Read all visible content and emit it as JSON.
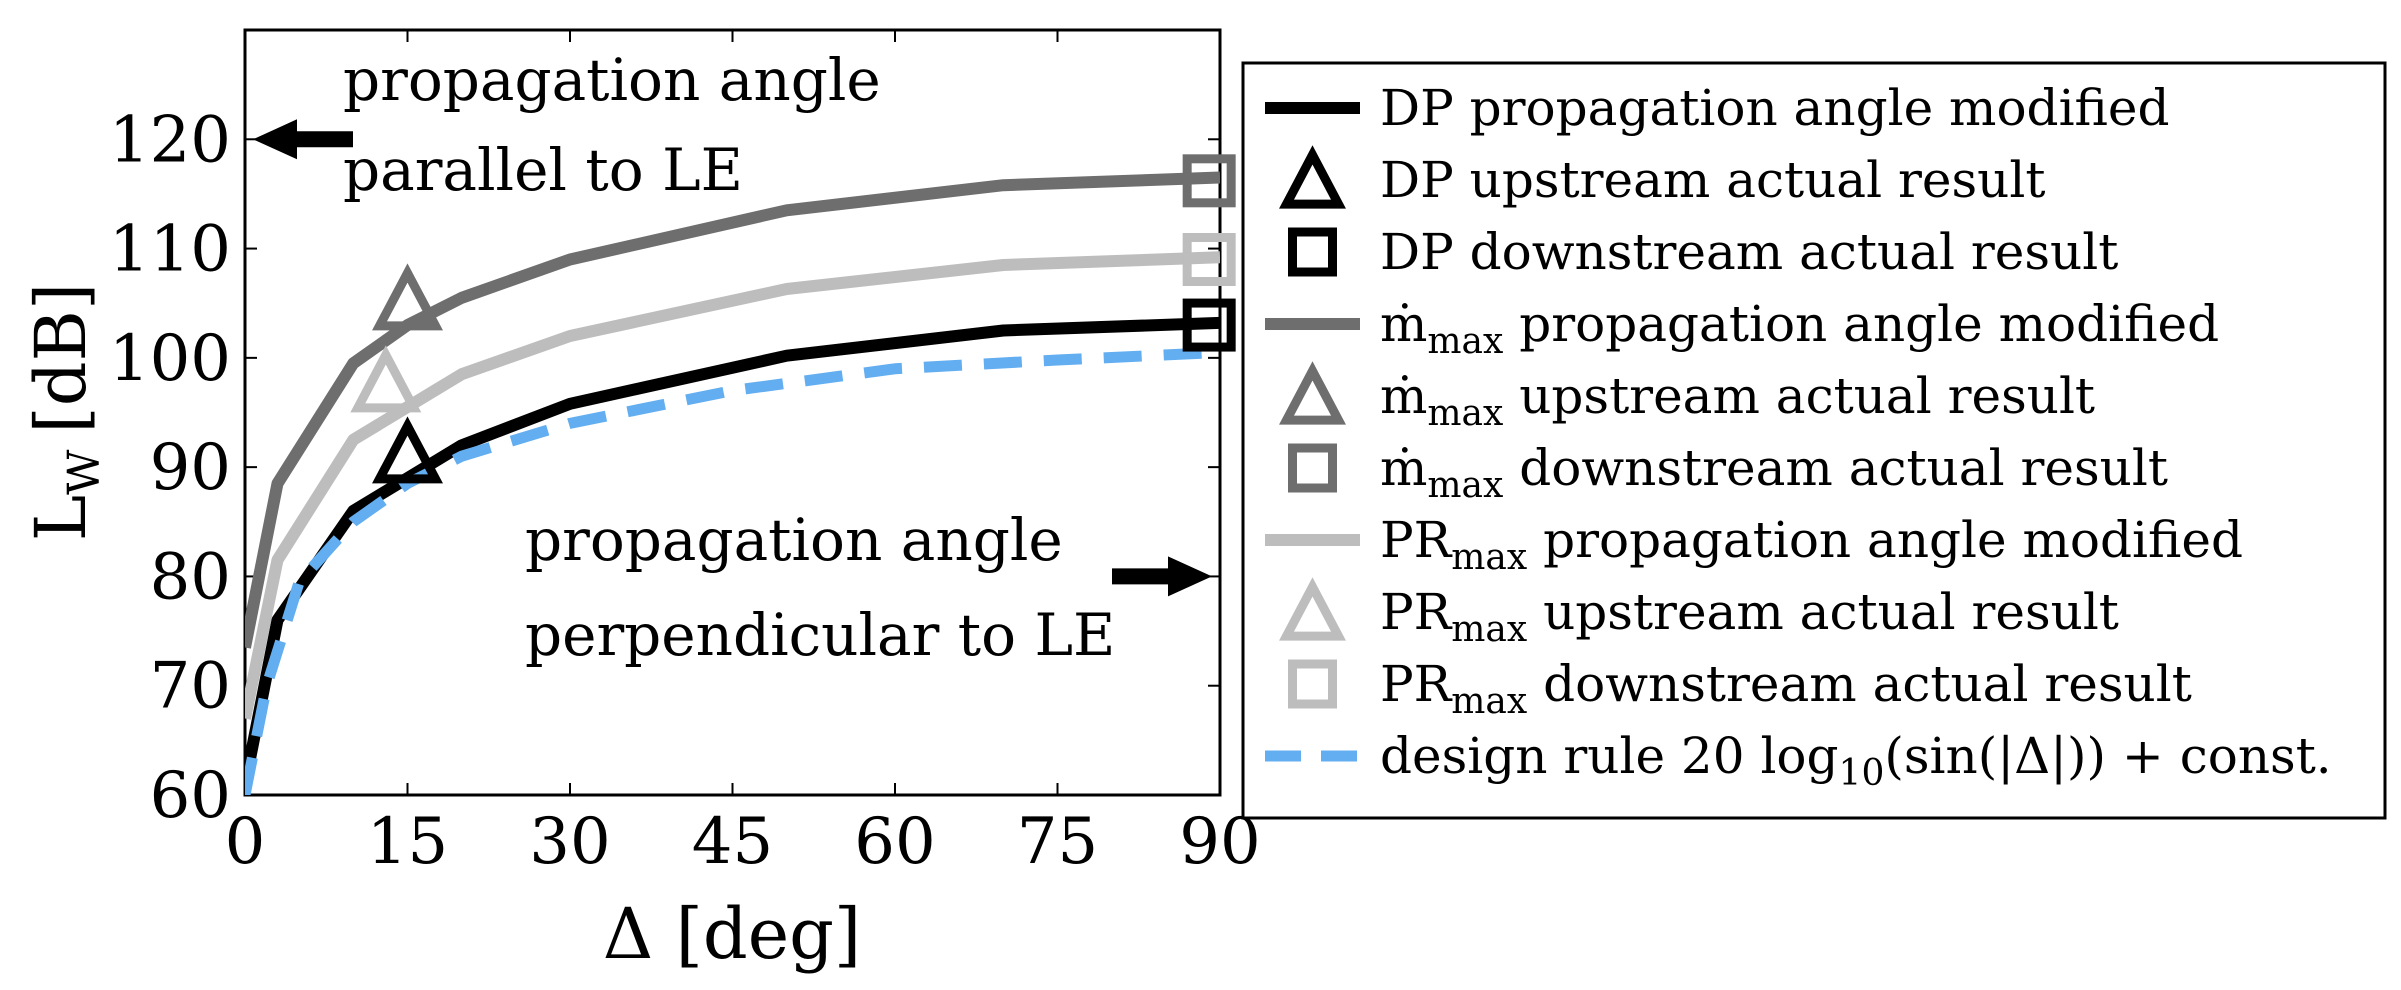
{
  "chart_data": {
    "type": "line",
    "xlabel": "Δ [deg]",
    "ylabel": "L_W [dB]",
    "ylabel_main": "L",
    "ylabel_sub": "W",
    "ylabel_unit": "[dB]",
    "xlim": [
      0,
      90
    ],
    "ylim": [
      60,
      130
    ],
    "xticks": [
      0,
      15,
      30,
      45,
      60,
      75,
      90
    ],
    "yticks": [
      60,
      70,
      80,
      90,
      100,
      110,
      120
    ],
    "xtick_labels": [
      "0",
      "15",
      "30",
      "45",
      "60",
      "75",
      "90"
    ],
    "ytick_labels": [
      "60",
      "70",
      "80",
      "90",
      "100",
      "110",
      "120"
    ],
    "colors": {
      "dp": "#000000",
      "mmax": "#6e6e6e",
      "prmax": "#bdbdbd",
      "design": "#63aef0"
    },
    "series": [
      {
        "id": "dp-modified",
        "name": "DP propagation angle modified",
        "color_key": "dp",
        "style": "solid",
        "x": [
          0,
          3,
          10,
          15,
          20,
          30,
          50,
          70,
          90
        ],
        "y": [
          61,
          76,
          86,
          89,
          92,
          95.8,
          100.2,
          102.5,
          103.2
        ]
      },
      {
        "id": "mmax-modified",
        "name": "ṁmax propagation angle modified",
        "color_key": "mmax",
        "style": "solid",
        "x": [
          0,
          3,
          10,
          15,
          20,
          30,
          50,
          70,
          90
        ],
        "y": [
          73.5,
          88.5,
          99.5,
          103,
          105.5,
          109,
          113.5,
          115.8,
          116.5
        ]
      },
      {
        "id": "prmax-modified",
        "name": "PRmax propagation angle modified",
        "color_key": "prmax",
        "style": "solid",
        "x": [
          0,
          3,
          10,
          15,
          20,
          30,
          50,
          70,
          90
        ],
        "y": [
          67,
          81.5,
          92.5,
          95.5,
          98.5,
          102,
          106.3,
          108.5,
          109.2
        ]
      },
      {
        "id": "design-rule",
        "name": "design rule 20 log10(sin(|Δ|)) + const.",
        "color_key": "design",
        "style": "dashed",
        "x": [
          0,
          2,
          5,
          10,
          15,
          20,
          30,
          45,
          60,
          75,
          90
        ],
        "y": [
          60,
          70,
          79.5,
          85,
          88.5,
          91,
          94,
          97,
          99,
          99.8,
          100.5
        ]
      }
    ],
    "markers": [
      {
        "id": "dp-upstream",
        "name": "DP upstream actual result",
        "shape": "triangle",
        "color_key": "dp",
        "x": 15,
        "y": 91
      },
      {
        "id": "dp-downstream",
        "name": "DP downstream actual result",
        "shape": "square",
        "color_key": "dp",
        "x": 89,
        "y": 103
      },
      {
        "id": "mmax-upstream",
        "name": "ṁmax upstream actual result",
        "shape": "triangle",
        "color_key": "mmax",
        "x": 15,
        "y": 105
      },
      {
        "id": "mmax-downstream",
        "name": "ṁmax downstream actual result",
        "shape": "square",
        "color_key": "mmax",
        "x": 89,
        "y": 116.2
      },
      {
        "id": "prmax-upstream",
        "name": "PRmax upstream actual result",
        "shape": "triangle",
        "color_key": "prmax",
        "x": 13,
        "y": 97.5
      },
      {
        "id": "prmax-downstream",
        "name": "PRmax downstream actual result",
        "shape": "square",
        "color_key": "prmax",
        "x": 89,
        "y": 109
      }
    ],
    "annotations": {
      "parallel_line1": "propagation angle",
      "parallel_line2": "parallel to LE",
      "parallel_arrow_y": 120,
      "perpendicular_line1": "propagation angle",
      "perpendicular_line2": "perpendicular to LE",
      "perpendicular_arrow_y": 80
    },
    "legend": {
      "placement": "right",
      "entries": [
        {
          "type": "line",
          "color_key": "dp",
          "prefix": "DP",
          "sub": "",
          "text": " propagation angle modified"
        },
        {
          "type": "triangle",
          "color_key": "dp",
          "prefix": "DP",
          "sub": "",
          "text": " upstream actual result"
        },
        {
          "type": "square",
          "color_key": "dp",
          "prefix": "DP",
          "sub": "",
          "text": " downstream actual result"
        },
        {
          "type": "line",
          "color_key": "mmax",
          "prefix": "ṁ",
          "sub": "max",
          "text": " propagation angle modified"
        },
        {
          "type": "triangle",
          "color_key": "mmax",
          "prefix": "ṁ",
          "sub": "max",
          "text": " upstream actual result"
        },
        {
          "type": "square",
          "color_key": "mmax",
          "prefix": "ṁ",
          "sub": "max",
          "text": " downstream actual result"
        },
        {
          "type": "line",
          "color_key": "prmax",
          "prefix": "PR",
          "sub": "max",
          "text": " propagation angle modified"
        },
        {
          "type": "triangle",
          "color_key": "prmax",
          "prefix": "PR",
          "sub": "max",
          "text": " upstream actual result"
        },
        {
          "type": "square",
          "color_key": "prmax",
          "prefix": "PR",
          "sub": "max",
          "text": " downstream actual result"
        },
        {
          "type": "dashed",
          "color_key": "design",
          "prefix": "design rule 20 log",
          "sub": "10",
          "text": "(sin(|Δ|)) + const."
        }
      ]
    }
  }
}
